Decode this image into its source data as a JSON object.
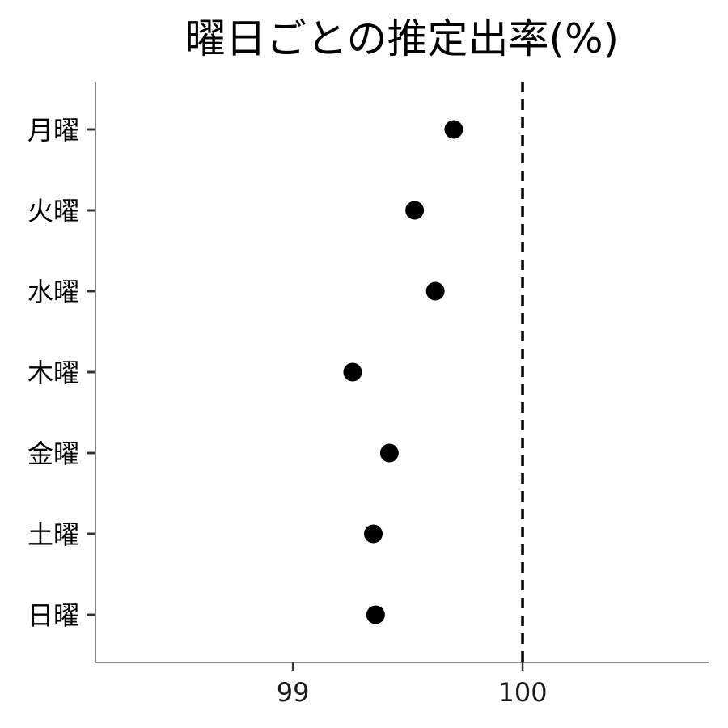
{
  "chart_data": {
    "type": "scatter",
    "title": "曜日ごとの推定出率(%)",
    "xlabel": "",
    "ylabel": "",
    "categories": [
      "月曜",
      "火曜",
      "水曜",
      "木曜",
      "金曜",
      "土曜",
      "日曜"
    ],
    "values": [
      99.7,
      99.53,
      99.62,
      99.26,
      99.42,
      99.35,
      99.36
    ],
    "xlim": [
      98.14,
      100.81
    ],
    "x_ticks": [
      {
        "value": 99,
        "label": "99"
      },
      {
        "value": 100,
        "label": "100"
      }
    ],
    "reference_line": {
      "value": 100,
      "style": "dashed"
    },
    "grid": false,
    "legend": "none",
    "point_color": "#000000"
  }
}
